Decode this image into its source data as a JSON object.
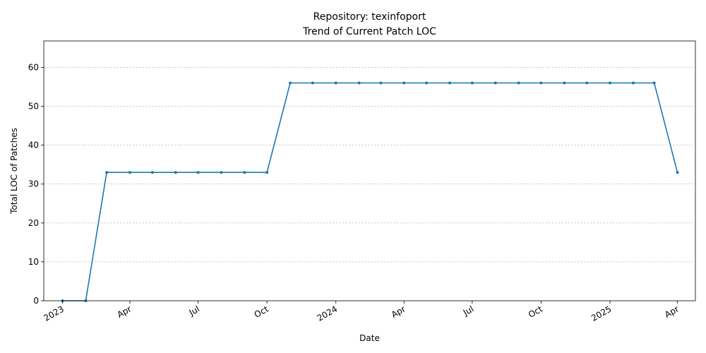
{
  "chart_data": {
    "type": "line",
    "title": "Repository: texinfoport",
    "subtitle": "Trend of Current Patch LOC",
    "xlabel": "Date",
    "ylabel": "Total LOC of Patches",
    "xlim": [
      "2022-12-07",
      "2025-04-25"
    ],
    "ylim": [
      0,
      66.8
    ],
    "grid": {
      "y": true,
      "x": false,
      "style": "dashed"
    },
    "line_color": "#1f77b4",
    "x_ticks": [
      {
        "date": "2023-01-01",
        "label": "2023"
      },
      {
        "date": "2023-04-01",
        "label": "Apr"
      },
      {
        "date": "2023-07-01",
        "label": "Jul"
      },
      {
        "date": "2023-10-01",
        "label": "Oct"
      },
      {
        "date": "2024-01-01",
        "label": "2024"
      },
      {
        "date": "2024-04-01",
        "label": "Apr"
      },
      {
        "date": "2024-07-01",
        "label": "Jul"
      },
      {
        "date": "2024-10-01",
        "label": "Oct"
      },
      {
        "date": "2025-01-01",
        "label": "2025"
      },
      {
        "date": "2025-04-01",
        "label": "Apr"
      }
    ],
    "y_ticks": [
      0,
      10,
      20,
      30,
      40,
      50,
      60
    ],
    "series": [
      {
        "x": [
          "2023-01-01",
          "2023-02-01",
          "2023-03-01",
          "2023-04-01",
          "2023-05-01",
          "2023-06-01",
          "2023-07-01",
          "2023-08-01",
          "2023-09-01",
          "2023-10-01",
          "2023-11-01",
          "2023-12-01",
          "2024-01-01",
          "2024-02-01",
          "2024-03-01",
          "2024-04-01",
          "2024-05-01",
          "2024-06-01",
          "2024-07-01",
          "2024-08-01",
          "2024-09-01",
          "2024-10-01",
          "2024-11-01",
          "2024-12-01",
          "2025-01-01",
          "2025-02-01",
          "2025-03-01",
          "2025-04-01"
        ],
        "y": [
          0,
          0,
          33,
          33,
          33,
          33,
          33,
          33,
          33,
          33,
          56,
          56,
          56,
          56,
          56,
          56,
          56,
          56,
          56,
          56,
          56,
          56,
          56,
          56,
          56,
          56,
          56,
          33
        ]
      }
    ]
  }
}
